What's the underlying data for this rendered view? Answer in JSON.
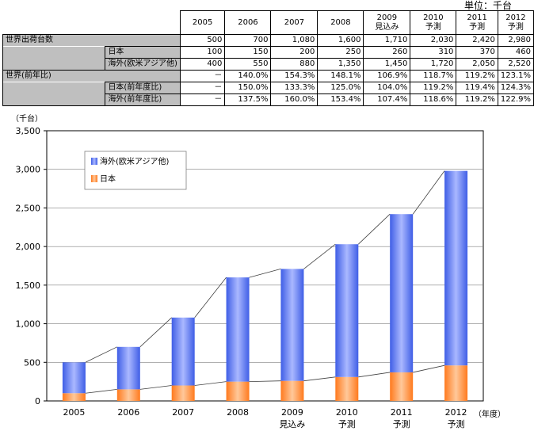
{
  "unit_label": "単位：千台",
  "table": {
    "columns": [
      {
        "l1": "2005",
        "l2": ""
      },
      {
        "l1": "2006",
        "l2": ""
      },
      {
        "l1": "2007",
        "l2": ""
      },
      {
        "l1": "2008",
        "l2": ""
      },
      {
        "l1": "2009",
        "l2": "見込み"
      },
      {
        "l1": "2010",
        "l2": "予測"
      },
      {
        "l1": "2011",
        "l2": "予測"
      },
      {
        "l1": "2012",
        "l2": "予測"
      }
    ],
    "rows": [
      {
        "label": "世界出荷台数",
        "indent": false,
        "values": [
          "500",
          "700",
          "1,080",
          "1,600",
          "1,710",
          "2,030",
          "2,420",
          "2,980"
        ]
      },
      {
        "label": "日本",
        "indent": true,
        "values": [
          "100",
          "150",
          "200",
          "250",
          "260",
          "310",
          "370",
          "460"
        ]
      },
      {
        "label": "海外(欧米アジア他)",
        "indent": true,
        "values": [
          "400",
          "550",
          "880",
          "1,350",
          "1,450",
          "1,720",
          "2,050",
          "2,520"
        ]
      },
      {
        "label": "世界(前年比)",
        "indent": false,
        "values": [
          "－",
          "140.0%",
          "154.3%",
          "148.1%",
          "106.9%",
          "118.7%",
          "119.2%",
          "123.1%"
        ]
      },
      {
        "label": "日本(前年度比)",
        "indent": true,
        "values": [
          "－",
          "150.0%",
          "133.3%",
          "125.0%",
          "104.0%",
          "119.2%",
          "119.4%",
          "124.3%"
        ]
      },
      {
        "label": "海外(前年度比)",
        "indent": true,
        "values": [
          "－",
          "137.5%",
          "160.0%",
          "153.4%",
          "107.4%",
          "118.6%",
          "119.2%",
          "122.9%"
        ]
      }
    ]
  },
  "chart_data": {
    "type": "bar",
    "stacked": true,
    "ylabel": "（千台）",
    "xlabel": "（年度）",
    "ylim": [
      0,
      3500
    ],
    "yticks": [
      0,
      500,
      1000,
      1500,
      2000,
      2500,
      3000,
      3500
    ],
    "ytick_labels": [
      "0",
      "500",
      "1,000",
      "1,500",
      "2,000",
      "2,500",
      "3,000",
      "3,500"
    ],
    "categories": [
      {
        "l1": "2005",
        "l2": ""
      },
      {
        "l1": "2006",
        "l2": ""
      },
      {
        "l1": "2007",
        "l2": ""
      },
      {
        "l1": "2008",
        "l2": ""
      },
      {
        "l1": "2009",
        "l2": "見込み"
      },
      {
        "l1": "2010",
        "l2": "予測"
      },
      {
        "l1": "2011",
        "l2": "予測"
      },
      {
        "l1": "2012",
        "l2": "予測"
      }
    ],
    "series": [
      {
        "name": "日本",
        "values": [
          100,
          150,
          200,
          250,
          260,
          310,
          370,
          460
        ],
        "color": "#ff8c3c"
      },
      {
        "name": "海外(欧米アジア他)",
        "values": [
          400,
          550,
          880,
          1350,
          1450,
          1720,
          2050,
          2520
        ],
        "color": "#5a78f0"
      }
    ],
    "connector_lines": true,
    "legend": {
      "position": "top-left",
      "order": [
        "海外(欧米アジア他)",
        "日本"
      ]
    }
  }
}
